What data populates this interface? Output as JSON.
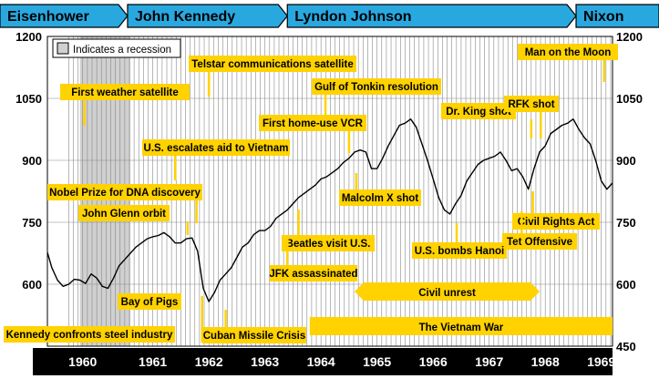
{
  "presidents": [
    {
      "name": "Eisenhower",
      "start": 1959.62,
      "end": 1961.05
    },
    {
      "name": "John Kennedy",
      "start": 1961.05,
      "end": 1963.9
    },
    {
      "name": "Lyndon Johnson",
      "start": 1963.9,
      "end": 1969.05
    },
    {
      "name": "Nixon",
      "start": 1969.05,
      "end": 1969.7
    }
  ],
  "colors": {
    "banner": "#29a8e0",
    "annotation": "#ffd200",
    "recession": "#d0d0d0",
    "grid": "#888888",
    "line": "#000000",
    "year_bar": "#000000"
  },
  "legend": {
    "label": "Indicates a recession"
  },
  "chart_data": {
    "type": "line",
    "title": "",
    "xlabel": "",
    "ylabel": "",
    "xlim": [
      1959.62,
      1969.7
    ],
    "ylim": [
      450,
      1200
    ],
    "y_ticks": [
      450,
      600,
      750,
      900,
      1050,
      1200
    ],
    "y_tick_labels_left": [
      "600",
      "750",
      "900",
      "1050",
      "1200"
    ],
    "y_tick_labels_right": [
      "450",
      "600",
      "750",
      "900",
      "1050",
      "1200"
    ],
    "x_tick_labels": [
      "1960",
      "1961",
      "1962",
      "1963",
      "1964",
      "1965",
      "1966",
      "1967",
      "1968",
      "1969"
    ],
    "recession": [
      1960.2,
      1961.1
    ],
    "grid": true,
    "series": [
      {
        "x": [
          1959.62,
          1959.7,
          1959.8,
          1959.9,
          1960.0,
          1960.1,
          1960.2,
          1960.3,
          1960.4,
          1960.5,
          1960.6,
          1960.7,
          1960.8,
          1960.9,
          1961.0,
          1961.1,
          1961.2,
          1961.3,
          1961.4,
          1961.5,
          1961.6,
          1961.7,
          1961.8,
          1961.9,
          1962.0,
          1962.1,
          1962.2,
          1962.3,
          1962.35,
          1962.4,
          1962.5,
          1962.6,
          1962.7,
          1962.8,
          1962.9,
          1963.0,
          1963.1,
          1963.2,
          1963.3,
          1963.4,
          1963.5,
          1963.6,
          1963.7,
          1963.8,
          1963.9,
          1964.0,
          1964.1,
          1964.2,
          1964.3,
          1964.4,
          1964.5,
          1964.6,
          1964.7,
          1964.8,
          1964.9,
          1965.0,
          1965.1,
          1965.2,
          1965.3,
          1965.4,
          1965.5,
          1965.6,
          1965.7,
          1965.8,
          1965.9,
          1966.0,
          1966.1,
          1966.2,
          1966.3,
          1966.4,
          1966.5,
          1966.6,
          1966.7,
          1966.8,
          1966.9,
          1967.0,
          1967.1,
          1967.2,
          1967.3,
          1967.4,
          1967.5,
          1967.6,
          1967.7,
          1967.8,
          1967.9,
          1968.0,
          1968.1,
          1968.2,
          1968.3,
          1968.4,
          1968.5,
          1968.6,
          1968.7,
          1968.8,
          1968.9,
          1969.0,
          1969.1,
          1969.2,
          1969.3,
          1969.4,
          1969.5,
          1969.6,
          1969.7
        ],
        "y": [
          677,
          640,
          610,
          595,
          600,
          612,
          610,
          602,
          625,
          615,
          595,
          590,
          615,
          645,
          660,
          675,
          690,
          700,
          710,
          715,
          718,
          725,
          715,
          700,
          700,
          710,
          712,
          680,
          635,
          590,
          558,
          580,
          610,
          625,
          640,
          665,
          690,
          700,
          720,
          730,
          730,
          740,
          760,
          770,
          780,
          795,
          810,
          820,
          830,
          840,
          855,
          860,
          870,
          880,
          895,
          905,
          920,
          925,
          920,
          880,
          880,
          905,
          935,
          960,
          985,
          990,
          1000,
          980,
          940,
          900,
          855,
          810,
          780,
          770,
          795,
          815,
          850,
          870,
          890,
          900,
          905,
          910,
          920,
          900,
          875,
          880,
          860,
          830,
          880,
          920,
          935,
          965,
          975,
          985,
          990,
          1000,
          975,
          955,
          940,
          900,
          850,
          830,
          845
        ]
      }
    ],
    "annotations": [
      {
        "text": "First weather satellite",
        "x": 1960.28
      },
      {
        "text": "Telstar communications satellite",
        "x": 1962.5
      },
      {
        "text": "Gulf of Tonkin resolution",
        "x": 1964.58
      },
      {
        "text": "First home-use VCR",
        "x": 1965.0
      },
      {
        "text": "U.S. escalates aid to Vietnam",
        "x": 1961.9
      },
      {
        "text": "Malcolm X shot",
        "x": 1965.13
      },
      {
        "text": "Nobel Prize for DNA discovery",
        "x": 1962.28
      },
      {
        "text": "John Glenn orbit",
        "x": 1962.12
      },
      {
        "text": "Beatles visit U.S.",
        "x": 1964.1
      },
      {
        "text": "JFK assassinated",
        "x": 1963.9
      },
      {
        "text": "Bay of Pigs",
        "x": 1961.3
      },
      {
        "text": "Kennedy confronts steel industry",
        "x": 1962.38
      },
      {
        "text": "Cuban Missile Crisis",
        "x": 1962.8
      },
      {
        "text": "Man on the Moon",
        "x": 1969.55
      },
      {
        "text": "Dr. King shot",
        "x": 1968.25
      },
      {
        "text": "RFK shot",
        "x": 1968.42
      },
      {
        "text": "Civil Rights Act",
        "x": 1968.28
      },
      {
        "text": "Tet Offensive",
        "x": 1968.08
      },
      {
        "text": "U.S. bombs Hanoi",
        "x": 1966.92
      },
      {
        "text": "Civil unrest",
        "start": 1965.1,
        "end": 1968.4
      },
      {
        "text": "The Vietnam War",
        "start": 1964.3,
        "end": 1969.7
      }
    ]
  }
}
